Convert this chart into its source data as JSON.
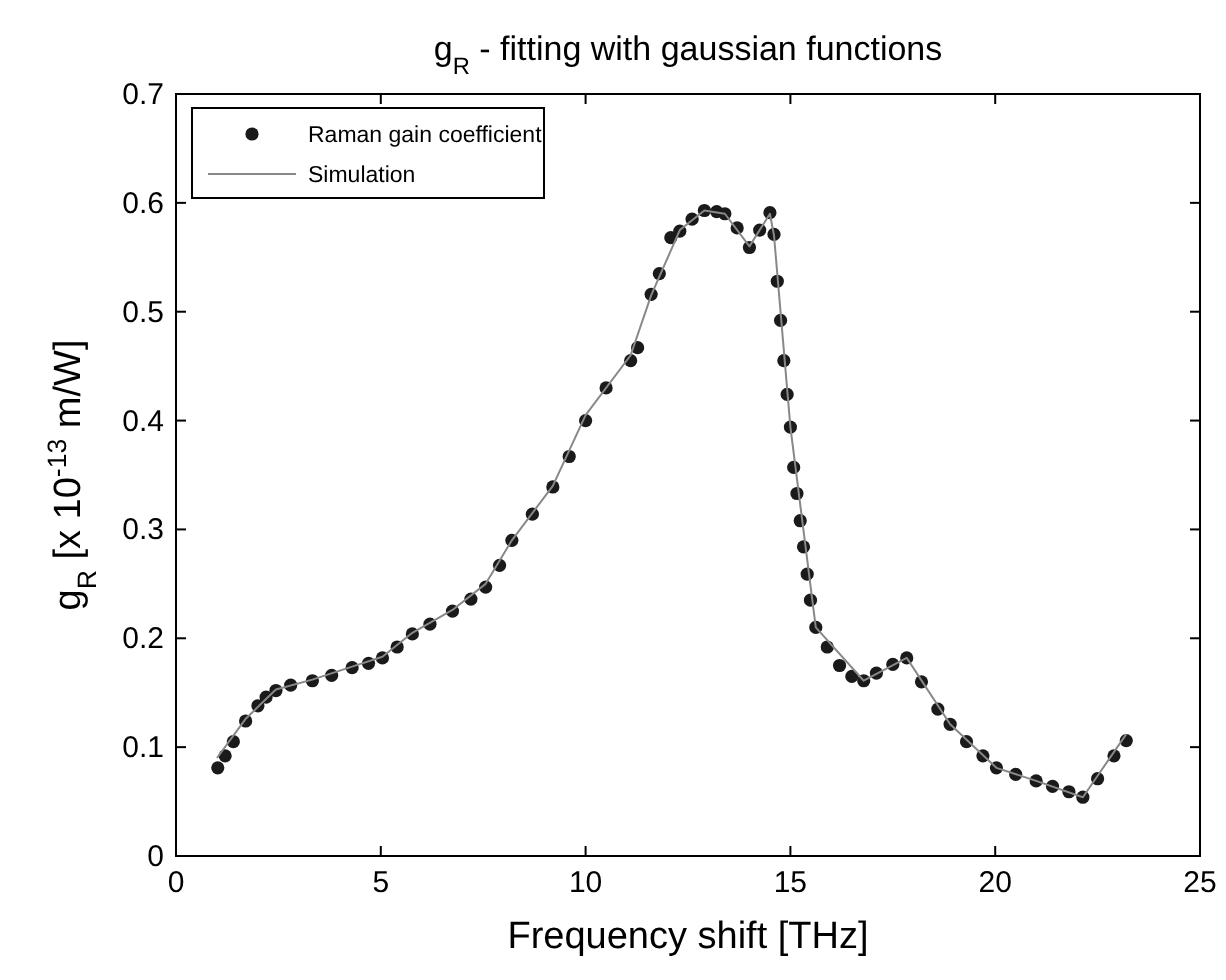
{
  "chart_data": {
    "type": "scatter",
    "title": "g$_{R}$ - fitting with gaussian functions",
    "xlabel": "Frequency shift [THz]",
    "ylabel": "g$_{R}$ [x 10$^{-13}$ m/W]",
    "xlim": [
      0,
      25
    ],
    "ylim": [
      0,
      0.7
    ],
    "xticks": [
      0,
      5,
      10,
      15,
      20,
      25
    ],
    "yticks": [
      0,
      0.1,
      0.2,
      0.3,
      0.4,
      0.5,
      0.6,
      0.7
    ],
    "legend": "top left",
    "grid": false,
    "series": [
      {
        "name": "Raman gain coefficient",
        "marker": "circle",
        "color": "#1a1a1a",
        "x": [
          1.02,
          1.2,
          1.4,
          1.7,
          2.0,
          2.2,
          2.44,
          2.8,
          3.33,
          3.8,
          4.3,
          4.7,
          5.04,
          5.4,
          5.77,
          6.2,
          6.75,
          7.2,
          7.56,
          7.9,
          8.2,
          8.7,
          9.2,
          9.6,
          10.0,
          10.5,
          11.1,
          11.27,
          11.6,
          11.8,
          12.08,
          12.3,
          12.6,
          12.9,
          13.2,
          13.4,
          13.7,
          14.0,
          14.25,
          14.5,
          14.6,
          14.68,
          14.76,
          14.84,
          14.92,
          15.0,
          15.08,
          15.16,
          15.24,
          15.32,
          15.41,
          15.49,
          15.62,
          15.9,
          16.2,
          16.5,
          16.79,
          17.1,
          17.5,
          17.84,
          18.2,
          18.6,
          18.9,
          19.3,
          19.7,
          20.03,
          20.5,
          21.0,
          21.4,
          21.8,
          22.14,
          22.5,
          22.9,
          23.2
        ],
        "values": [
          0.081,
          0.092,
          0.105,
          0.124,
          0.138,
          0.146,
          0.152,
          0.157,
          0.161,
          0.166,
          0.173,
          0.177,
          0.182,
          0.192,
          0.204,
          0.213,
          0.225,
          0.236,
          0.247,
          0.267,
          0.29,
          0.314,
          0.339,
          0.367,
          0.4,
          0.43,
          0.455,
          0.467,
          0.516,
          0.535,
          0.568,
          0.574,
          0.585,
          0.593,
          0.592,
          0.59,
          0.577,
          0.559,
          0.575,
          0.591,
          0.571,
          0.528,
          0.492,
          0.455,
          0.424,
          0.394,
          0.357,
          0.333,
          0.308,
          0.284,
          0.259,
          0.235,
          0.21,
          0.192,
          0.175,
          0.165,
          0.161,
          0.168,
          0.176,
          0.182,
          0.16,
          0.135,
          0.121,
          0.105,
          0.092,
          0.081,
          0.075,
          0.069,
          0.064,
          0.059,
          0.054,
          0.071,
          0.092,
          0.106
        ]
      },
      {
        "name": "Simulation",
        "type": "line",
        "marker": "none",
        "color": "#888888",
        "x": [
          1.0,
          1.7,
          2.44,
          3.33,
          4.3,
          5.04,
          5.77,
          6.75,
          7.56,
          8.2,
          9.2,
          10.0,
          11.1,
          11.6,
          12.3,
          12.9,
          13.4,
          14.0,
          14.5,
          14.6,
          15.0,
          15.62,
          16.79,
          17.84,
          18.9,
          20.03,
          21.0,
          22.14,
          23.2
        ],
        "values": [
          0.09,
          0.126,
          0.153,
          0.162,
          0.174,
          0.183,
          0.205,
          0.226,
          0.25,
          0.29,
          0.34,
          0.405,
          0.46,
          0.515,
          0.575,
          0.593,
          0.59,
          0.56,
          0.59,
          0.57,
          0.394,
          0.21,
          0.161,
          0.182,
          0.121,
          0.081,
          0.069,
          0.054,
          0.112
        ]
      }
    ]
  }
}
